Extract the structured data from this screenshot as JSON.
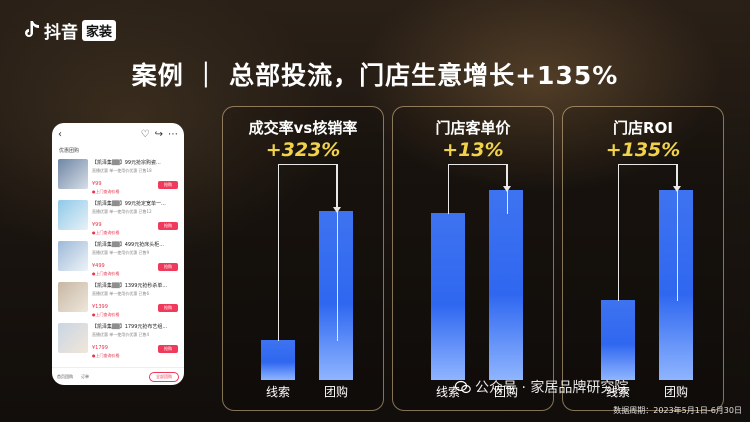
{
  "brand": {
    "name": "抖音",
    "tag": "家装"
  },
  "headline": "案例 ｜ 总部投流，门店生意增长+135%",
  "phone": {
    "section_title": "优惠团购",
    "deals": [
      {
        "title": "【凯泽集▒▒】99元抢宗购瓷...",
        "sub": "直播优惠  单一使用价优惠  已售18",
        "price": "¥99",
        "tag": "●上门查询价格",
        "buy": "抢购"
      },
      {
        "title": "【凯泽集▒▒】99元抢定宽单一...",
        "sub": "直播优惠  单一使用价优惠  已售12",
        "price": "¥99",
        "tag": "●上门查询价格",
        "buy": "抢购"
      },
      {
        "title": "【凯泽集▒▒】499元抢床头柜...",
        "sub": "直播优惠  单一使用价优惠  已售9",
        "price": "¥499",
        "tag": "●上门查询价格",
        "buy": "抢购"
      },
      {
        "title": "【凯泽集▒▒】1399元抢秒杀单...",
        "sub": "直播优惠  单一使用价优惠  已售6",
        "price": "¥1399",
        "tag": "●上门查询价格",
        "buy": "抢购"
      },
      {
        "title": "【凯泽集▒▒】1799元抢布艺组...",
        "sub": "直播优惠  单一使用价优惠  已售4",
        "price": "¥1799",
        "tag": "●上门查询价格",
        "buy": "抢购"
      }
    ],
    "bottom_tabs": [
      "首页团购",
      "订单"
    ],
    "all_button": "全部团购"
  },
  "panels": [
    {
      "title": "成交率vs核销率",
      "value": "+323%",
      "labels": [
        "线索",
        "团购"
      ],
      "ratio": [
        0.21,
        0.89
      ]
    },
    {
      "title": "门店客单价",
      "value": "+13%",
      "labels": [
        "线索",
        "团购"
      ],
      "ratio": [
        0.88,
        1.0
      ]
    },
    {
      "title": "门店ROI",
      "value": "+135%",
      "labels": [
        "线索",
        "团购"
      ],
      "ratio": [
        0.42,
        1.0
      ]
    }
  ],
  "watermark": "公众号 · 家居品牌研究院",
  "date_note": "数据周期：2023年5月1日-6月30日",
  "colors": {
    "bar": "#2f67f0",
    "accent_value": "#f2d24b",
    "buy_button": "#f03a5b"
  }
}
